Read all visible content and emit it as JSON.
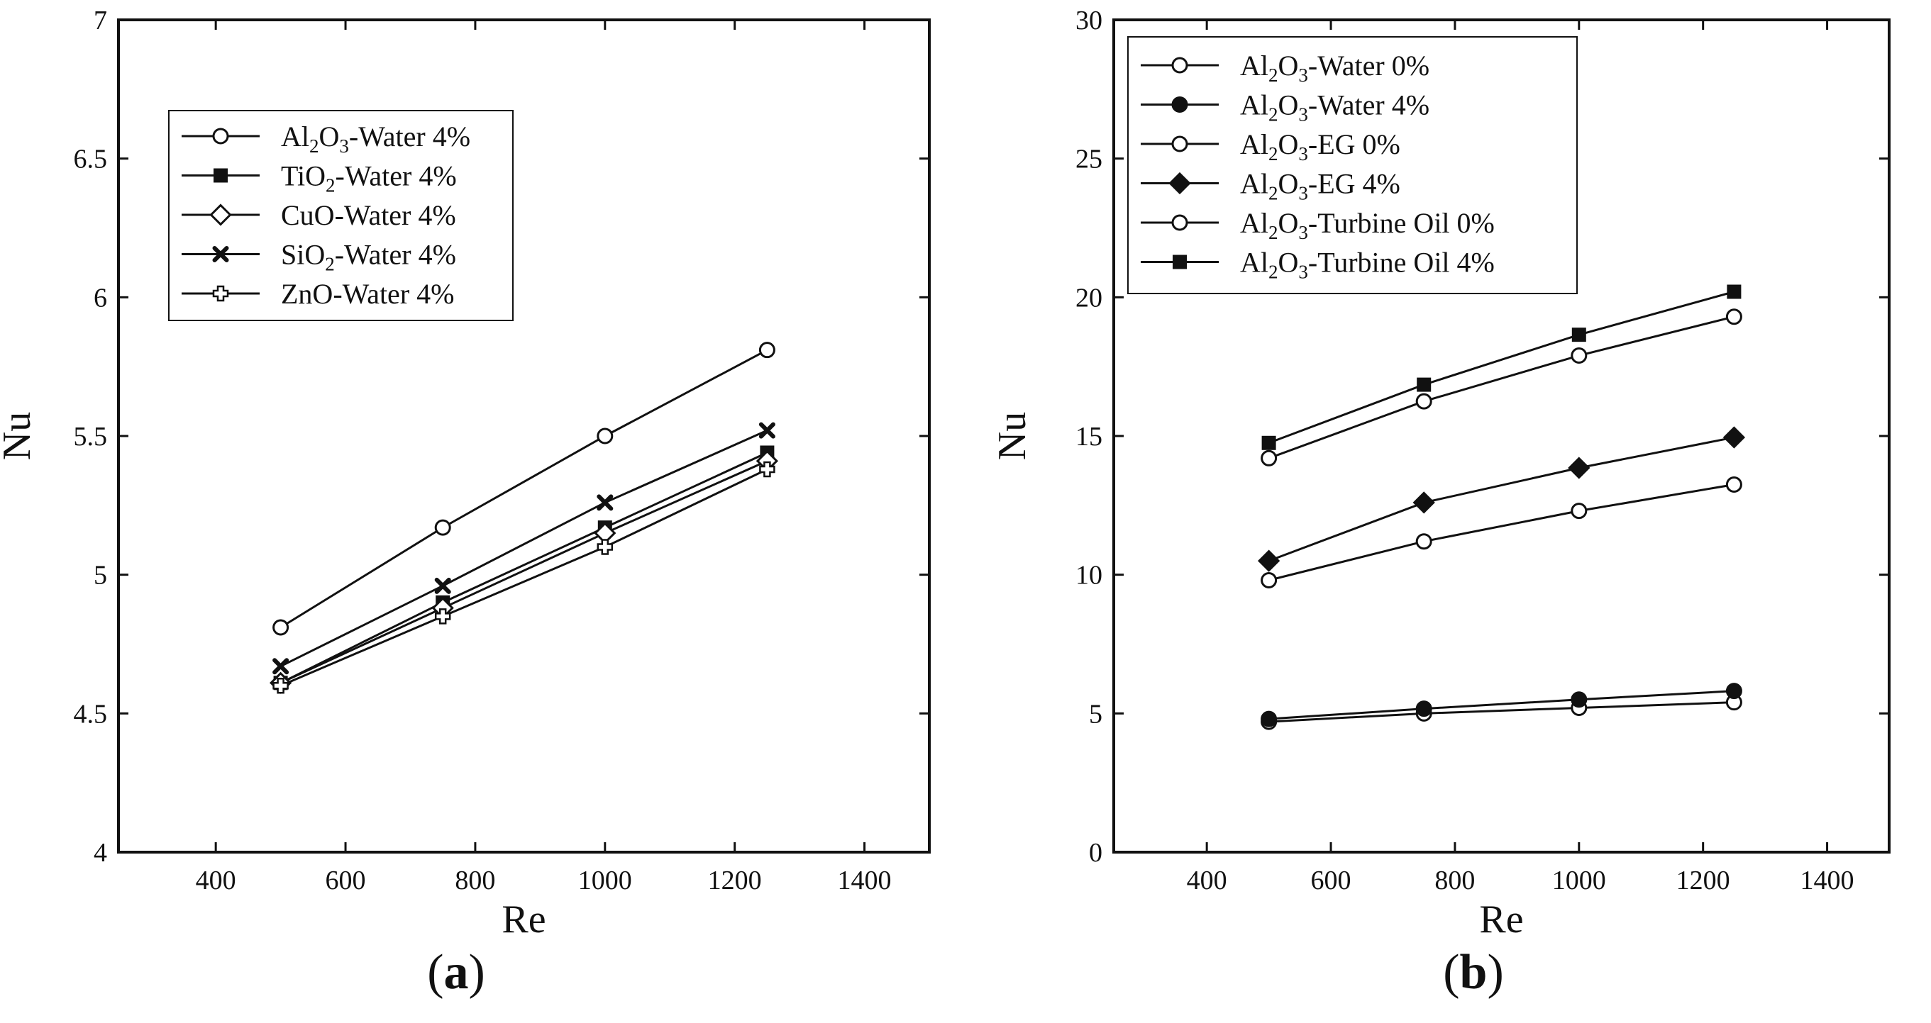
{
  "chart_data": [
    {
      "type": "line",
      "panel_label": [
        "(",
        "a",
        ")"
      ],
      "xlabel": "Re",
      "ylabel": "Nu",
      "xlim": [
        250,
        1500
      ],
      "ylim": [
        4,
        7
      ],
      "xticks": [
        400,
        600,
        800,
        1000,
        1200,
        1400
      ],
      "yticks": [
        4,
        4.5,
        5,
        5.5,
        6,
        6.5,
        7
      ],
      "ytick_labels": [
        "4",
        "4.5",
        "5",
        "5.5",
        "6",
        "6.5",
        "7"
      ],
      "legend_position": "top-left",
      "x": [
        500,
        750,
        1000,
        1250
      ],
      "series": [
        {
          "name": "Al2O3-Water 4%",
          "label_parts": [
            "Al",
            "2",
            "O",
            "3",
            "-Water 4%"
          ],
          "marker": "circle-open",
          "values": [
            4.81,
            5.17,
            5.5,
            5.81
          ]
        },
        {
          "name": "TiO2-Water 4%",
          "label_parts": [
            "TiO",
            "2",
            "-Water 4%"
          ],
          "marker": "square-filled",
          "values": [
            4.61,
            4.9,
            5.17,
            5.44
          ]
        },
        {
          "name": "CuO-Water 4%",
          "label_parts": [
            "CuO-Water 4%"
          ],
          "marker": "diamond-open",
          "values": [
            4.61,
            4.88,
            5.15,
            5.41
          ]
        },
        {
          "name": "SiO2-Water 4%",
          "label_parts": [
            "SiO",
            "2",
            "-Water 4%"
          ],
          "marker": "x-filled",
          "values": [
            4.67,
            4.96,
            5.26,
            5.52
          ]
        },
        {
          "name": "ZnO-Water 4%",
          "label_parts": [
            "ZnO-Water 4%"
          ],
          "marker": "plus-open",
          "values": [
            4.6,
            4.85,
            5.1,
            5.38
          ]
        }
      ]
    },
    {
      "type": "line",
      "panel_label": [
        "(",
        "b",
        ")"
      ],
      "xlabel": "Re",
      "ylabel": "Nu",
      "xlim": [
        250,
        1500
      ],
      "ylim": [
        0,
        30
      ],
      "xticks": [
        400,
        600,
        800,
        1000,
        1200,
        1400
      ],
      "yticks": [
        0,
        5,
        10,
        15,
        20,
        25,
        30
      ],
      "ytick_labels": [
        "0",
        "5",
        "10",
        "15",
        "20",
        "25",
        "30"
      ],
      "legend_position": "top-left",
      "x": [
        500,
        750,
        1000,
        1250
      ],
      "series": [
        {
          "name": "Al2O3-Water 0%",
          "label_parts": [
            "Al",
            "2",
            "O",
            "3",
            "-Water 0%"
          ],
          "marker": "circle-open",
          "values": [
            4.7,
            5.0,
            5.2,
            5.4
          ]
        },
        {
          "name": "Al2O3-Water 4%",
          "label_parts": [
            "Al",
            "2",
            "O",
            "3",
            "-Water 4%"
          ],
          "marker": "circle-filled",
          "values": [
            4.8,
            5.17,
            5.5,
            5.81
          ]
        },
        {
          "name": "Al2O3-EG 0%",
          "label_parts": [
            "Al",
            "2",
            "O",
            "3",
            "-EG 0%"
          ],
          "marker": "circle-open",
          "values": [
            9.8,
            11.2,
            12.3,
            13.25
          ]
        },
        {
          "name": "Al2O3-EG 4%",
          "label_parts": [
            "Al",
            "2",
            "O",
            "3",
            "-EG 4%"
          ],
          "marker": "diamond-filled",
          "values": [
            10.5,
            12.6,
            13.85,
            14.95
          ]
        },
        {
          "name": "Al2O3-Turbine Oil 0%",
          "label_parts": [
            "Al",
            "2",
            "O",
            "3",
            "-Turbine Oil 0%"
          ],
          "marker": "circle-open",
          "values": [
            14.2,
            16.25,
            17.9,
            19.3
          ]
        },
        {
          "name": "Al2O3-Turbine Oil 4%",
          "label_parts": [
            "Al",
            "2",
            "O",
            "3",
            "-Turbine Oil 4%"
          ],
          "marker": "square-filled",
          "values": [
            14.75,
            16.85,
            18.65,
            20.2
          ]
        }
      ]
    }
  ]
}
